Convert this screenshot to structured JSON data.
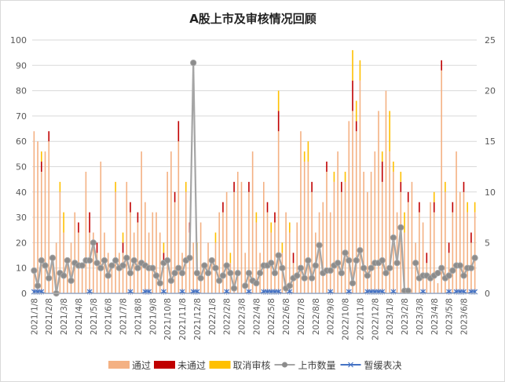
{
  "chart_data": {
    "type": "bar",
    "title": "A股上市及审核情况回顾",
    "left_axis": {
      "min": 0,
      "max": 100,
      "ticks": [
        0,
        10,
        20,
        30,
        40,
        50,
        60,
        70,
        80,
        90,
        100
      ]
    },
    "right_axis": {
      "min": 0,
      "max": 25,
      "ticks": [
        0,
        5,
        10,
        15,
        20,
        25
      ]
    },
    "x_tick_labels": [
      "2021/1/8",
      "2021/2/8",
      "2021/3/8",
      "2021/4/8",
      "2021/5/8",
      "2021/6/8",
      "2021/7/8",
      "2021/8/8",
      "2021/9/8",
      "2021/10/8",
      "2021/11/8",
      "2021/12/8",
      "2022/1/8",
      "2022/2/8",
      "2022/3/8",
      "2022/4/8",
      "2022/5/8",
      "2022/6/8",
      "2022/7/8",
      "2022/8/8",
      "2022/9/8",
      "2022/10/8",
      "2022/11/8",
      "2022/12/8",
      "2023/1/8",
      "2023/2/8",
      "2023/3/8",
      "2023/4/8",
      "2023/5/8",
      "2023/6/8"
    ],
    "legend_position": "bottom",
    "colors": {
      "pass": "#F4B183",
      "fail": "#C00000",
      "cancel": "#FFC000",
      "listing": "#A5A5A5",
      "postpone": "#4472C4"
    },
    "series": [
      {
        "key": "pass",
        "name": "通过",
        "kind": "stacked-bar",
        "axis": "right",
        "values": [
          16,
          15,
          12,
          14,
          15,
          3,
          5,
          10,
          6,
          3,
          5,
          8,
          6,
          3,
          12,
          6,
          6,
          4,
          13,
          6,
          4,
          3,
          10,
          4,
          4,
          11,
          8,
          6,
          7,
          14,
          9,
          6,
          8,
          8,
          6,
          3,
          12,
          14,
          9,
          15,
          4,
          10,
          6,
          5,
          3,
          7,
          3,
          5,
          3,
          5,
          8,
          8,
          10,
          3,
          10,
          12,
          11,
          4,
          10,
          14,
          7,
          4,
          11,
          8,
          6,
          7,
          16,
          4,
          8,
          6,
          3,
          7,
          16,
          13,
          13,
          10,
          6,
          8,
          9,
          12,
          8,
          11,
          14,
          10,
          11,
          17,
          18,
          16,
          21,
          12,
          10,
          12,
          14,
          18,
          11,
          20,
          14,
          12,
          8,
          10,
          6,
          9,
          11,
          5,
          8,
          7,
          3,
          9,
          8,
          1,
          22,
          10,
          4,
          8,
          14,
          10,
          10,
          8,
          5,
          8
        ]
      },
      {
        "key": "fail",
        "name": "未通过",
        "kind": "stacked-bar",
        "axis": "right",
        "values": [
          0,
          0,
          1,
          0,
          1,
          0,
          0,
          0,
          0,
          0,
          0,
          0,
          1,
          0,
          0,
          2,
          0,
          1,
          0,
          0,
          0,
          0,
          0,
          0,
          1,
          0,
          1,
          0,
          1,
          0,
          0,
          0,
          0,
          0,
          0,
          1,
          0,
          0,
          1,
          2,
          0,
          0,
          1,
          0,
          0,
          0,
          0,
          0,
          0,
          0,
          0,
          1,
          0,
          0,
          1,
          0,
          0,
          0,
          1,
          0,
          0,
          0,
          0,
          1,
          0,
          1,
          2,
          0,
          0,
          0,
          1,
          0,
          0,
          0,
          0,
          1,
          0,
          0,
          0,
          1,
          0,
          0,
          0,
          1,
          0,
          0,
          3,
          1,
          0,
          0,
          0,
          0,
          0,
          0,
          2,
          0,
          0,
          0,
          0,
          1,
          0,
          1,
          0,
          0,
          1,
          0,
          1,
          0,
          1,
          0,
          1,
          0,
          1,
          1,
          0,
          0,
          1,
          0,
          1,
          0
        ]
      },
      {
        "key": "cancel",
        "name": "取消审核",
        "kind": "stacked-bar",
        "axis": "right",
        "values": [
          0,
          0,
          1,
          0,
          0,
          0,
          0,
          1,
          2,
          0,
          0,
          0,
          0,
          0,
          0,
          0,
          0,
          0,
          0,
          0,
          0,
          0,
          1,
          0,
          1,
          0,
          0,
          0,
          0,
          0,
          0,
          0,
          0,
          0,
          0,
          1,
          0,
          0,
          0,
          0,
          0,
          1,
          0,
          0,
          2,
          0,
          0,
          0,
          0,
          1,
          0,
          0,
          0,
          1,
          0,
          0,
          0,
          0,
          0,
          0,
          1,
          0,
          0,
          0,
          1,
          0,
          2,
          1,
          0,
          1,
          0,
          0,
          0,
          1,
          2,
          0,
          0,
          0,
          0,
          0,
          0,
          1,
          0,
          0,
          1,
          0,
          3,
          2,
          2,
          0,
          0,
          0,
          0,
          0,
          1,
          0,
          4,
          1,
          0,
          1,
          2,
          0,
          0,
          0,
          0,
          0,
          0,
          0,
          1,
          0,
          0,
          1,
          0,
          0,
          0,
          0,
          0,
          1,
          0,
          1
        ]
      },
      {
        "key": "listing",
        "name": "上市数量",
        "kind": "line",
        "axis": "left",
        "values": [
          9,
          3,
          13,
          11,
          6,
          14,
          0,
          8,
          7,
          13,
          5,
          12,
          11,
          11,
          13,
          13,
          20,
          12,
          10,
          13,
          7,
          11,
          13,
          10,
          11,
          14,
          8,
          13,
          10,
          12,
          11,
          10,
          10,
          7,
          4,
          12,
          13,
          5,
          8,
          10,
          8,
          13,
          14,
          91,
          8,
          6,
          11,
          8,
          13,
          10,
          5,
          7,
          11,
          8,
          2,
          8,
          null,
          3,
          8,
          5,
          4,
          8,
          11,
          11,
          12,
          8,
          15,
          10,
          2,
          3,
          6,
          7,
          10,
          6,
          13,
          6,
          11,
          19,
          8,
          9,
          9,
          11,
          12,
          8,
          16,
          13,
          4,
          13,
          17,
          10,
          7,
          10,
          12,
          12,
          13,
          8,
          10,
          22,
          12,
          26,
          1,
          1,
          null,
          12,
          6,
          7,
          7,
          6,
          7,
          8,
          10,
          6,
          7,
          9,
          11,
          11,
          7,
          10,
          10,
          14
        ]
      },
      {
        "key": "postpone",
        "name": "暂缓表决",
        "kind": "line",
        "axis": "right",
        "values": [
          1,
          1,
          1,
          0,
          0,
          0,
          0,
          0,
          0,
          0,
          0,
          0,
          0,
          0,
          0,
          1,
          0,
          0,
          0,
          0,
          0,
          0,
          0,
          0,
          0,
          0,
          1,
          0,
          0,
          0,
          1,
          1,
          0,
          0,
          0,
          1,
          0,
          0,
          0,
          0,
          1,
          0,
          0,
          1,
          1,
          0,
          0,
          0,
          0,
          0,
          0,
          0,
          1,
          0,
          0,
          0,
          0,
          0,
          1,
          0,
          0,
          0,
          1,
          1,
          1,
          1,
          1,
          0,
          0,
          1,
          0,
          0,
          0,
          0,
          0,
          0,
          0,
          0,
          0,
          0,
          1,
          0,
          0,
          0,
          0,
          1,
          0,
          0,
          0,
          0,
          1,
          1,
          1,
          1,
          1,
          0,
          0,
          1,
          0,
          0,
          0,
          0,
          0,
          0,
          0,
          1,
          0,
          0,
          0,
          0,
          0,
          0,
          1,
          0,
          1,
          1,
          1,
          0,
          1,
          1
        ]
      }
    ]
  }
}
